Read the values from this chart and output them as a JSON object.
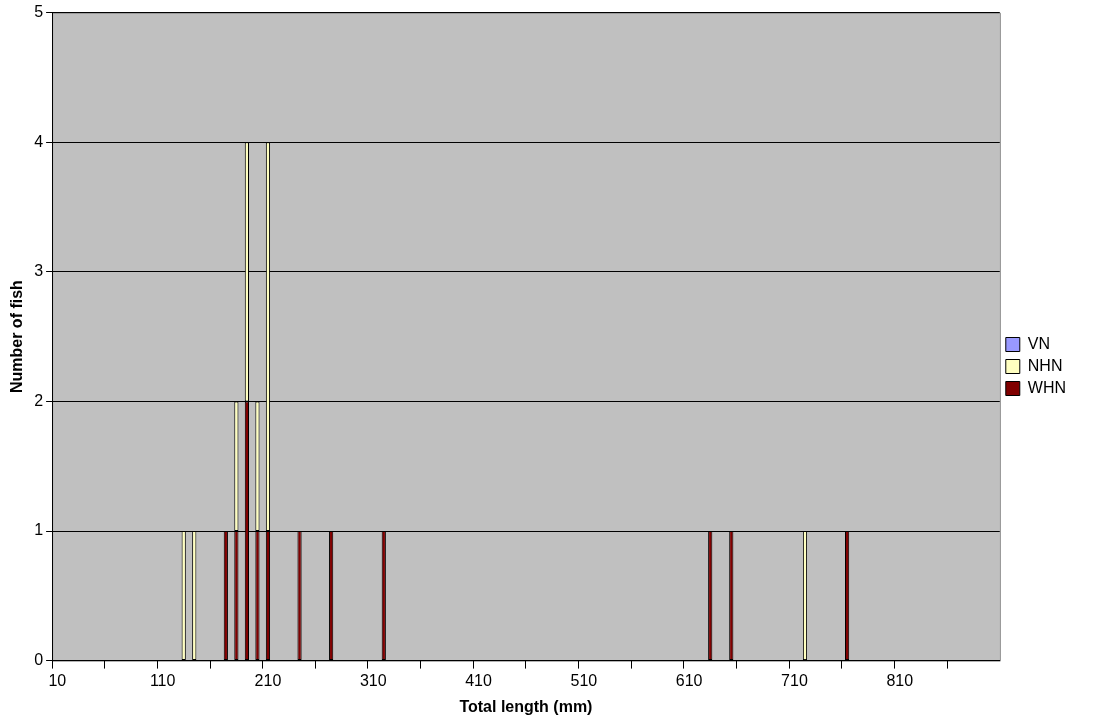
{
  "chart_data": {
    "type": "bar",
    "stacked": true,
    "xlabel": "Total length (mm)",
    "ylabel": "Number of fish",
    "categories": [
      "10",
      null,
      null,
      null,
      null,
      null,
      null,
      null,
      null,
      null,
      "110",
      null,
      null,
      null,
      null,
      null,
      null,
      null,
      null,
      null,
      "210",
      null,
      null,
      null,
      null,
      null,
      null,
      null,
      null,
      null,
      "310",
      null,
      null,
      null,
      null,
      null,
      null,
      null,
      null,
      null,
      "410",
      null,
      null,
      null,
      null,
      null,
      null,
      null,
      null,
      null,
      "510",
      null,
      null,
      null,
      null,
      null,
      null,
      null,
      null,
      null,
      "610",
      null,
      null,
      null,
      null,
      null,
      null,
      null,
      null,
      null,
      "710",
      null,
      null,
      null,
      null,
      null,
      null,
      null,
      null,
      null,
      "810",
      null,
      null,
      null,
      null,
      null,
      null,
      null,
      null,
      null
    ],
    "series": [
      {
        "name": "WHN",
        "color": "#800000",
        "values": [
          0,
          0,
          0,
          0,
          0,
          0,
          0,
          0,
          0,
          0,
          0,
          0,
          0,
          0,
          0,
          0,
          1,
          1,
          2,
          1,
          1,
          0,
          0,
          1,
          0,
          0,
          1,
          0,
          0,
          0,
          0,
          1,
          0,
          0,
          0,
          0,
          0,
          0,
          0,
          0,
          0,
          0,
          0,
          0,
          0,
          0,
          0,
          0,
          0,
          0,
          0,
          0,
          0,
          0,
          0,
          0,
          0,
          0,
          0,
          0,
          0,
          0,
          1,
          0,
          1,
          0,
          0,
          0,
          0,
          0,
          0,
          0,
          0,
          0,
          0,
          1,
          0,
          0,
          0,
          0,
          0,
          0,
          0,
          0,
          0,
          0,
          0,
          0,
          0,
          0
        ]
      },
      {
        "name": "NHN",
        "color": "#ffffc0",
        "values": [
          0,
          0,
          0,
          0,
          0,
          0,
          0,
          0,
          0,
          0,
          0,
          0,
          1,
          1,
          0,
          0,
          0,
          1,
          2,
          1,
          3,
          0,
          0,
          0,
          0,
          0,
          0,
          0,
          0,
          0,
          0,
          0,
          0,
          0,
          0,
          0,
          0,
          0,
          0,
          0,
          0,
          0,
          0,
          0,
          0,
          0,
          0,
          0,
          0,
          0,
          0,
          0,
          0,
          0,
          0,
          0,
          0,
          0,
          0,
          0,
          0,
          0,
          0,
          0,
          0,
          0,
          0,
          0,
          0,
          0,
          0,
          1,
          0,
          0,
          0,
          0,
          0,
          0,
          0,
          0,
          0,
          0,
          0,
          0,
          0,
          0,
          0,
          0,
          0,
          0
        ]
      },
      {
        "name": "VN",
        "color": "#9999ff",
        "values": [
          0,
          0,
          0,
          0,
          0,
          0,
          0,
          0,
          0,
          0,
          0,
          0,
          0,
          0,
          0,
          0,
          0,
          0,
          0,
          0,
          0,
          0,
          0,
          0,
          0,
          0,
          0,
          0,
          0,
          0,
          0,
          0,
          0,
          0,
          0,
          0,
          0,
          0,
          0,
          0,
          0,
          0,
          0,
          0,
          0,
          0,
          0,
          0,
          0,
          0,
          0,
          0,
          0,
          0,
          0,
          0,
          0,
          0,
          0,
          0,
          0,
          0,
          0,
          0,
          0,
          0,
          0,
          0,
          0,
          0,
          0,
          0,
          0,
          0,
          0,
          0,
          0,
          0,
          0,
          0,
          0,
          0,
          0,
          0,
          0,
          0,
          0,
          0,
          0,
          0
        ]
      }
    ],
    "ylim": [
      0,
      5
    ],
    "yticks": [
      0,
      1,
      2,
      3,
      4,
      5
    ],
    "grid": "y",
    "legend": "right"
  }
}
